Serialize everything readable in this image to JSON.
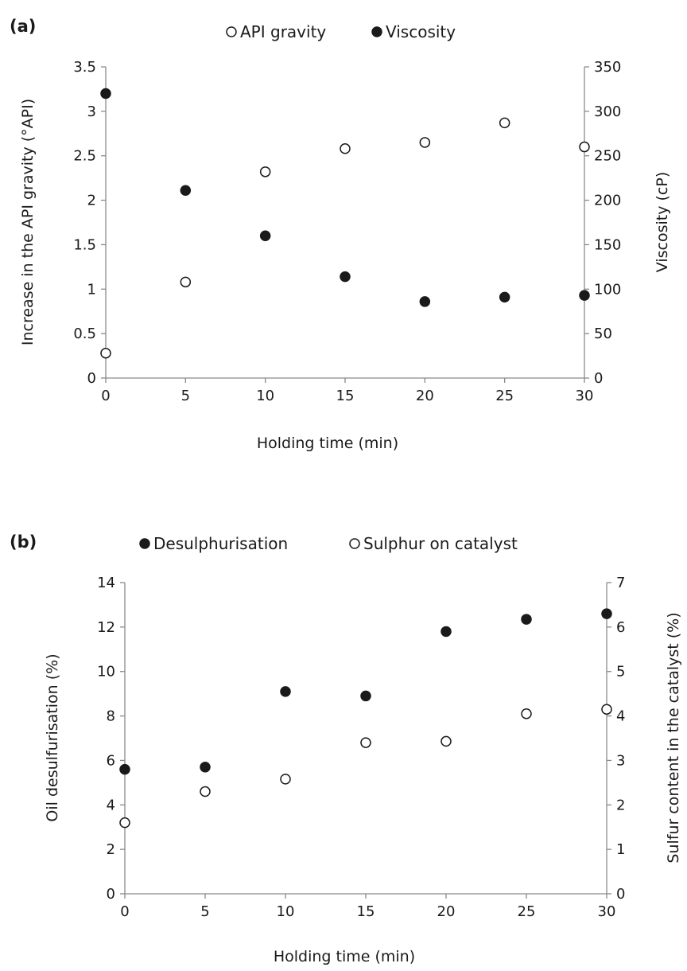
{
  "chart_data": [
    {
      "type": "scatter",
      "panel_label": "(a)",
      "title": "",
      "xlabel": "Holding time (min)",
      "ylabel_left": "Increase in the API gravity (°API)",
      "ylabel_right": "Viscosity (cP)",
      "xlim": [
        0,
        30
      ],
      "ylim_left": [
        0,
        3.5
      ],
      "ylim_right": [
        0,
        350
      ],
      "x_ticks": [
        "0",
        "5",
        "10",
        "15",
        "20",
        "25",
        "30"
      ],
      "y_left_ticks": [
        "0",
        "0.5",
        "1",
        "1.5",
        "2",
        "2.5",
        "3",
        "3.5"
      ],
      "y_right_ticks": [
        "0",
        "50",
        "100",
        "150",
        "200",
        "250",
        "300",
        "350"
      ],
      "grid": false,
      "legend_position": "top",
      "series": [
        {
          "name": "API gravity",
          "axis": "left",
          "marker": "open-circle",
          "x": [
            0,
            5,
            10,
            15,
            20,
            25,
            30
          ],
          "y": [
            0.28,
            1.08,
            2.32,
            2.58,
            2.65,
            2.87,
            2.6
          ]
        },
        {
          "name": "Viscosity",
          "axis": "right",
          "marker": "filled-circle",
          "x": [
            0,
            5,
            10,
            15,
            20,
            25,
            30
          ],
          "y": [
            320,
            211,
            160,
            114,
            86,
            91,
            93
          ]
        }
      ]
    },
    {
      "type": "scatter",
      "panel_label": "(b)",
      "title": "",
      "xlabel": "Holding time (min)",
      "ylabel_left": "Oil desulfurisation (%)",
      "ylabel_right": "Sulfur content in the catalyst (%)",
      "xlim": [
        0,
        30
      ],
      "ylim_left": [
        0,
        14
      ],
      "ylim_right": [
        0,
        7
      ],
      "x_ticks": [
        "0",
        "5",
        "10",
        "15",
        "20",
        "25",
        "30"
      ],
      "y_left_ticks": [
        "0",
        "2",
        "4",
        "6",
        "8",
        "10",
        "12",
        "14"
      ],
      "y_right_ticks": [
        "0",
        "1",
        "2",
        "3",
        "4",
        "5",
        "6",
        "7"
      ],
      "grid": false,
      "legend_position": "top",
      "series": [
        {
          "name": "Desulphurisation",
          "axis": "left",
          "marker": "filled-circle",
          "x": [
            0,
            5,
            10,
            15,
            20,
            25,
            30
          ],
          "y": [
            5.6,
            5.7,
            9.1,
            8.9,
            11.8,
            12.35,
            12.6
          ]
        },
        {
          "name": "Sulphur on catalyst",
          "axis": "right",
          "marker": "open-circle",
          "x": [
            0,
            5,
            10,
            15,
            20,
            25,
            30
          ],
          "y": [
            1.6,
            2.3,
            2.58,
            3.4,
            3.43,
            4.05,
            4.15
          ]
        }
      ]
    }
  ]
}
